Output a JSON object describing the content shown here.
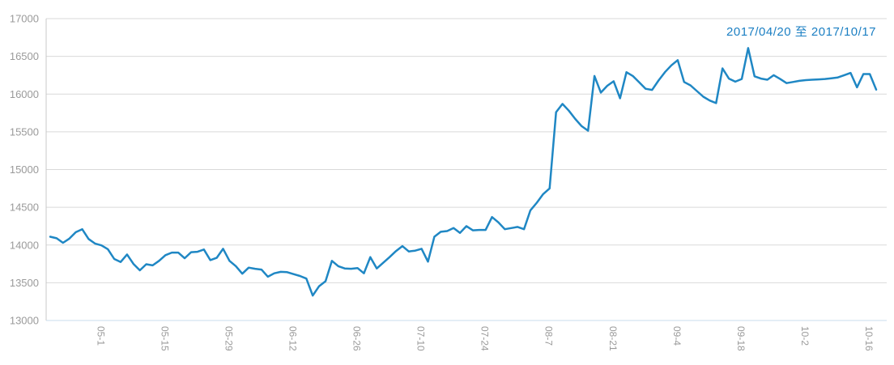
{
  "title": "2017/04/20 至 2017/10/17",
  "colors": {
    "line": "#1f87c4",
    "title": "#1b7fc3",
    "axis_label": "#9a9a9a",
    "gridline": "#d9d9d9",
    "axis_line_left": "#c8c8c8",
    "axis_line_bottom": "#c9dcee",
    "background": "#ffffff"
  },
  "chart_data": {
    "type": "line",
    "title": "2017/04/20 至 2017/10/17",
    "xlabel": "",
    "ylabel": "",
    "ylim": [
      13000,
      17000
    ],
    "y_tick_step": 500,
    "y_tick_labels": [
      "13000",
      "13500",
      "14000",
      "14500",
      "15000",
      "15500",
      "16000",
      "16500",
      "17000"
    ],
    "x_tick_labels": [
      "05-1",
      "05-15",
      "05-29",
      "06-12",
      "06-26",
      "07-10",
      "07-24",
      "08-7",
      "08-21",
      "09-4",
      "09-18",
      "10-2",
      "10-16"
    ],
    "x_tick_indices": [
      8,
      18,
      28,
      38,
      48,
      58,
      68,
      78,
      88,
      98,
      108,
      118,
      128
    ],
    "grid": true,
    "legend_position": "none",
    "series_name": "price",
    "values": [
      14110,
      14090,
      14030,
      14085,
      14170,
      14210,
      14080,
      14020,
      13995,
      13945,
      13815,
      13775,
      13875,
      13750,
      13665,
      13745,
      13730,
      13790,
      13865,
      13900,
      13900,
      13825,
      13905,
      13910,
      13940,
      13800,
      13830,
      13950,
      13790,
      13720,
      13620,
      13700,
      13685,
      13675,
      13580,
      13625,
      13645,
      13640,
      13615,
      13590,
      13555,
      13330,
      13455,
      13520,
      13790,
      13720,
      13690,
      13685,
      13695,
      13625,
      13840,
      13690,
      13765,
      13840,
      13920,
      13985,
      13915,
      13925,
      13950,
      13780,
      14110,
      14175,
      14185,
      14225,
      14160,
      14250,
      14195,
      14200,
      14200,
      14370,
      14300,
      14210,
      14225,
      14240,
      14210,
      14460,
      14560,
      14675,
      14750,
      15760,
      15870,
      15780,
      15670,
      15575,
      15515,
      16240,
      16020,
      16110,
      16170,
      15945,
      16290,
      16240,
      16155,
      16070,
      16055,
      16180,
      16290,
      16380,
      16450,
      16160,
      16115,
      16040,
      15965,
      15915,
      15880,
      16340,
      16205,
      16165,
      16200,
      16610,
      16235,
      16205,
      16190,
      16250,
      16200,
      16145,
      16160,
      16175,
      16185,
      16190,
      16195,
      16200,
      16210,
      16220,
      16250,
      16280,
      16090,
      16265,
      16265,
      16060
    ]
  }
}
